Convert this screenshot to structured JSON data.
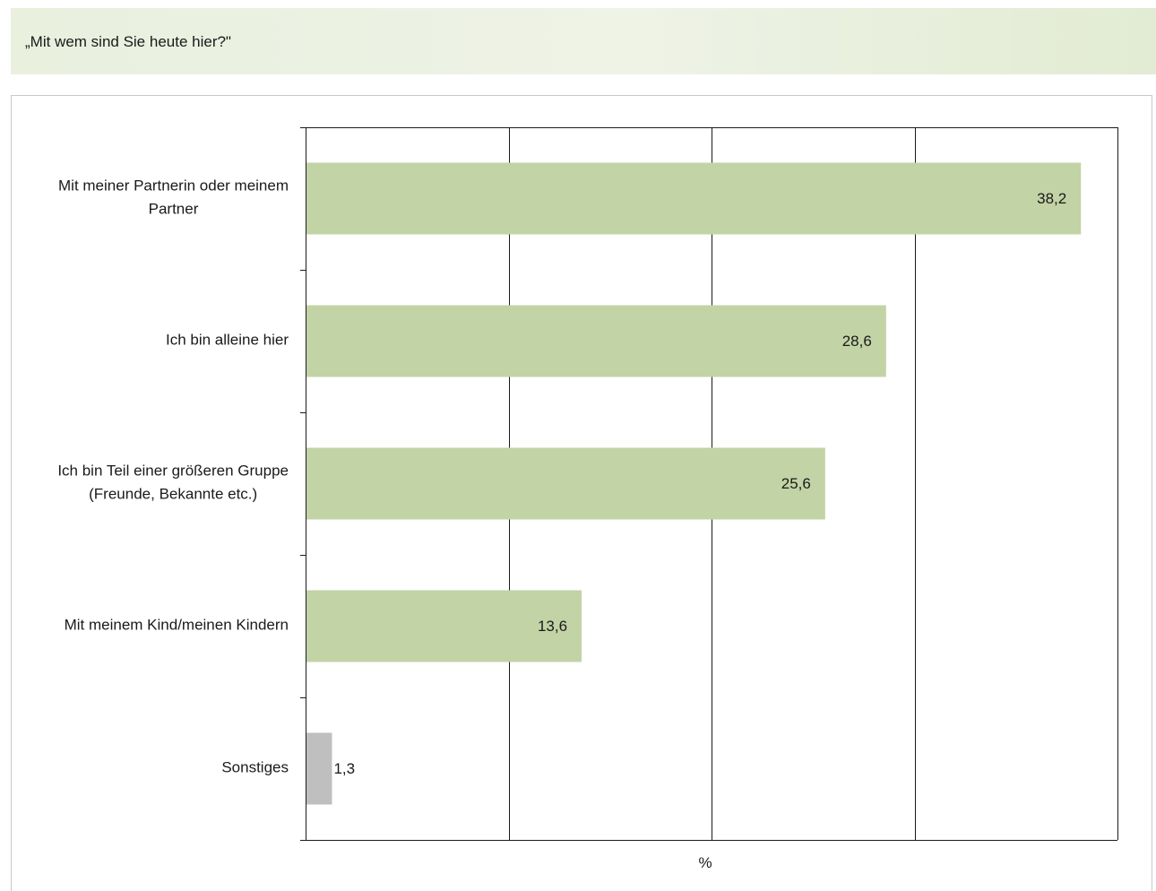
{
  "chart_data": {
    "type": "bar",
    "orientation": "horizontal",
    "title": "„Mit wem sind Sie heute hier?\"",
    "xlabel": "%",
    "ylabel": "",
    "xlim": [
      0,
      40
    ],
    "grid": true,
    "categories": [
      [
        "Mit meiner Partnerin oder meinem",
        "Partner"
      ],
      [
        "Ich bin alleine hier"
      ],
      [
        "Ich bin Teil einer größeren Gruppe",
        "(Freunde, Bekannte etc.)"
      ],
      [
        "Mit meinem Kind/meinen Kindern"
      ],
      [
        "Sonstiges"
      ]
    ],
    "values": [
      38.2,
      28.6,
      25.6,
      13.6,
      1.3
    ],
    "value_labels": [
      "38,2",
      "28,6",
      "25,6",
      "13,6",
      "1,3"
    ],
    "colors": {
      "main": "#c2d3a5",
      "other": "#bfbfbf"
    },
    "bar_colors": [
      "main",
      "main",
      "main",
      "main",
      "other"
    ]
  }
}
